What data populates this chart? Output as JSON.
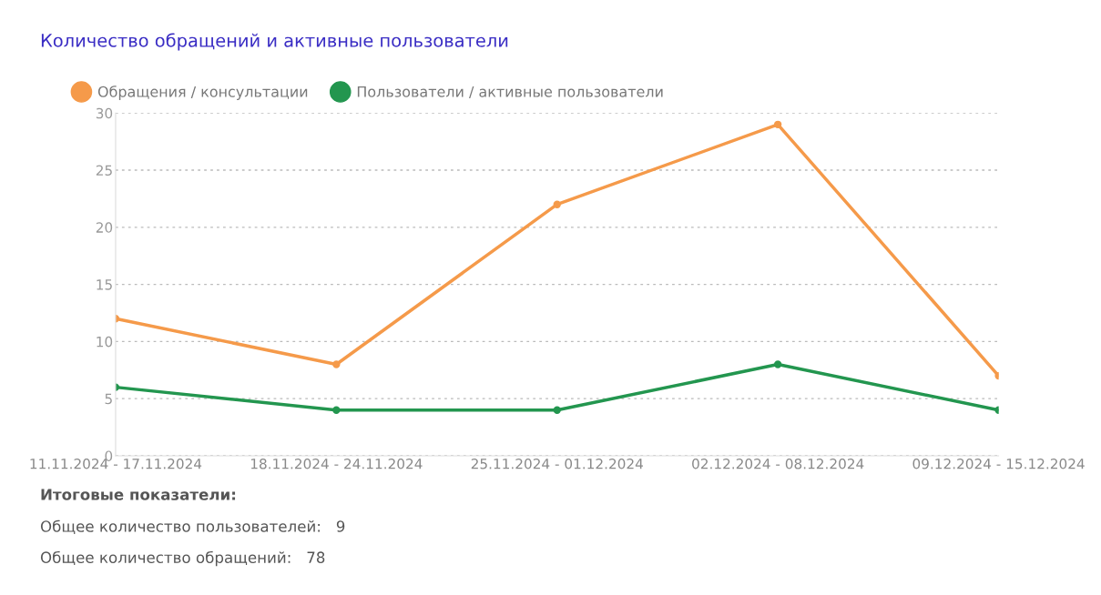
{
  "chart_data": {
    "type": "line",
    "title": "Количество обращений и активные пользователи",
    "categories": [
      "11.11.2024 - 17.11.2024",
      "18.11.2024 - 24.11.2024",
      "25.11.2024 - 01.12.2024",
      "02.12.2024 - 08.12.2024",
      "09.12.2024 - 15.12.2024"
    ],
    "series": [
      {
        "name": "Обращения / консультации",
        "color": "#f59a4a",
        "values": [
          12,
          8,
          22,
          29,
          7
        ]
      },
      {
        "name": "Пользователи / активные пользователи",
        "color": "#23964f",
        "values": [
          6,
          4,
          4,
          8,
          4
        ]
      }
    ],
    "ylim": [
      0,
      30
    ],
    "yticks": [
      0,
      5,
      10,
      15,
      20,
      25,
      30
    ],
    "grid": "y",
    "legend": "top left",
    "marker": "circle",
    "line_style": "solid",
    "annotations": [
      "Итоговые показатели:",
      "Общее количество пользователей:   9",
      "Общее количество обращений:   78"
    ]
  }
}
